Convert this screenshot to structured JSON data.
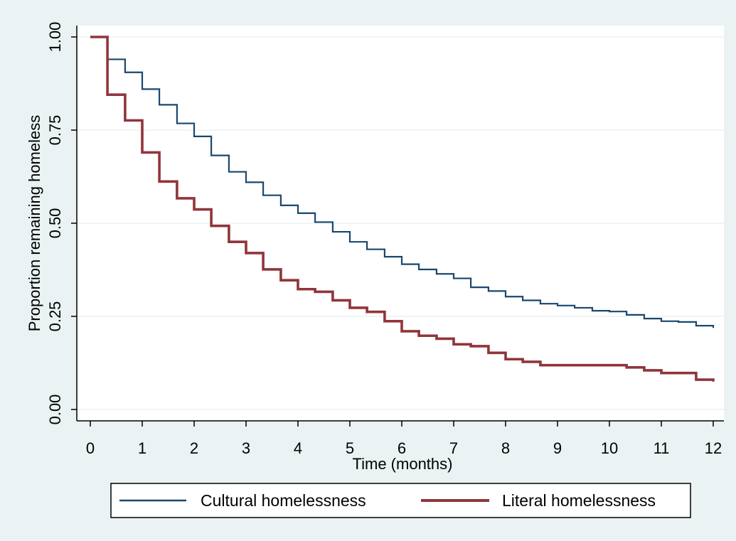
{
  "chart_data": {
    "type": "line",
    "title": "",
    "xlabel": "Time (months)",
    "ylabel": "Proportion remaining homeless",
    "xlim": [
      0,
      12
    ],
    "ylim": [
      0,
      1
    ],
    "x_ticks": [
      0,
      1,
      2,
      3,
      4,
      5,
      6,
      7,
      8,
      9,
      10,
      11,
      12
    ],
    "y_ticks": [
      0.0,
      0.25,
      0.5,
      0.75,
      1.0
    ],
    "y_tick_labels": [
      "0.00",
      "0.25",
      "0.50",
      "0.75",
      "1.00"
    ],
    "grid": "horizontal",
    "legend_position": "bottom",
    "background_color": "#eaf2f3",
    "plot_background_color": "#ffffff",
    "grid_color": "#eaf2f3",
    "series": [
      {
        "name": "Cultural homelessness",
        "color": "#1a476f",
        "steps": [
          [
            0,
            1.0
          ],
          [
            0.33,
            0.94
          ],
          [
            0.67,
            0.905
          ],
          [
            1.0,
            0.86
          ],
          [
            1.33,
            0.818
          ],
          [
            1.67,
            0.768
          ],
          [
            2.0,
            0.733
          ],
          [
            2.33,
            0.682
          ],
          [
            2.67,
            0.638
          ],
          [
            3.0,
            0.61
          ],
          [
            3.33,
            0.575
          ],
          [
            3.67,
            0.548
          ],
          [
            4.0,
            0.527
          ],
          [
            4.33,
            0.503
          ],
          [
            4.67,
            0.477
          ],
          [
            5.0,
            0.45
          ],
          [
            5.33,
            0.43
          ],
          [
            5.67,
            0.41
          ],
          [
            6.0,
            0.39
          ],
          [
            6.33,
            0.376
          ],
          [
            6.67,
            0.364
          ],
          [
            7.0,
            0.352
          ],
          [
            7.33,
            0.328
          ],
          [
            7.67,
            0.318
          ],
          [
            8.0,
            0.303
          ],
          [
            8.33,
            0.293
          ],
          [
            8.67,
            0.284
          ],
          [
            9.0,
            0.279
          ],
          [
            9.33,
            0.273
          ],
          [
            9.67,
            0.265
          ],
          [
            10.0,
            0.263
          ],
          [
            10.33,
            0.254
          ],
          [
            10.67,
            0.244
          ],
          [
            11.0,
            0.237
          ],
          [
            11.33,
            0.235
          ],
          [
            11.67,
            0.225
          ],
          [
            12.0,
            0.219
          ]
        ]
      },
      {
        "name": "Literal homelessness",
        "color": "#90353b",
        "steps": [
          [
            0,
            1.0
          ],
          [
            0.33,
            0.845
          ],
          [
            0.67,
            0.776
          ],
          [
            1.0,
            0.69
          ],
          [
            1.33,
            0.612
          ],
          [
            1.67,
            0.567
          ],
          [
            2.0,
            0.537
          ],
          [
            2.33,
            0.493
          ],
          [
            2.67,
            0.45
          ],
          [
            3.0,
            0.42
          ],
          [
            3.33,
            0.376
          ],
          [
            3.67,
            0.347
          ],
          [
            4.0,
            0.323
          ],
          [
            4.33,
            0.316
          ],
          [
            4.67,
            0.293
          ],
          [
            5.0,
            0.273
          ],
          [
            5.33,
            0.262
          ],
          [
            5.67,
            0.237
          ],
          [
            6.0,
            0.21
          ],
          [
            6.33,
            0.198
          ],
          [
            6.67,
            0.19
          ],
          [
            7.0,
            0.175
          ],
          [
            7.33,
            0.17
          ],
          [
            7.67,
            0.152
          ],
          [
            8.0,
            0.135
          ],
          [
            8.33,
            0.128
          ],
          [
            8.67,
            0.119
          ],
          [
            10.33,
            0.113
          ],
          [
            10.67,
            0.105
          ],
          [
            11.0,
            0.098
          ],
          [
            11.67,
            0.08
          ],
          [
            12.0,
            0.075
          ]
        ]
      }
    ]
  }
}
